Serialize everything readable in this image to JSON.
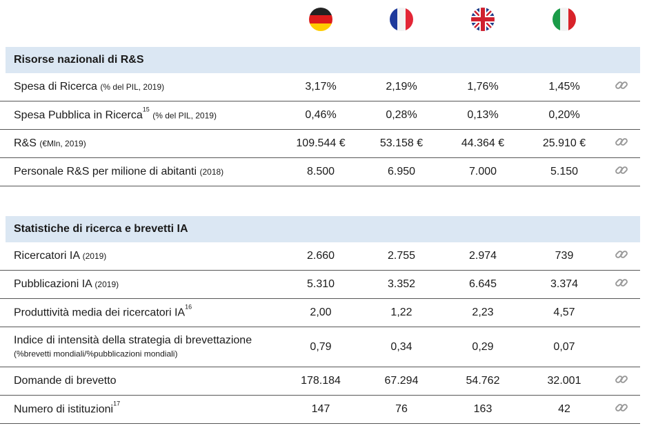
{
  "sections": [
    {
      "title": "Risorse nazionali di R&S",
      "rows": [
        {
          "label": "Spesa di Ricerca",
          "note": "(% del PIL, 2019)",
          "values": [
            "3,17%",
            "2,19%",
            "1,76%",
            "1,45%"
          ],
          "link": true
        },
        {
          "label": "Spesa Pubblica in Ricerca",
          "sup": "15",
          "note": "(% del PIL, 2019)",
          "values": [
            "0,46%",
            "0,28%",
            "0,13%",
            "0,20%"
          ],
          "link": false
        },
        {
          "label": "R&S",
          "note": "(€Mln, 2019)",
          "values": [
            "109.544 €",
            "53.158 €",
            "44.364 €",
            "25.910 €"
          ],
          "link": true
        },
        {
          "label": "Personale R&S per milione di abitanti",
          "note": "(2018)",
          "values": [
            "8.500",
            "6.950",
            "7.000",
            "5.150"
          ],
          "link": true
        }
      ]
    },
    {
      "title": "Statistiche di ricerca e brevetti IA",
      "rows": [
        {
          "label": "Ricercatori IA",
          "note": "(2019)",
          "values": [
            "2.660",
            "2.755",
            "2.974",
            "739"
          ],
          "link": true
        },
        {
          "label": "Pubblicazioni IA",
          "note": "(2019)",
          "values": [
            "5.310",
            "3.352",
            "6.645",
            "3.374"
          ],
          "link": true
        },
        {
          "label": "Produttività media dei ricercatori IA",
          "sup": "16",
          "values": [
            "2,00",
            "1,22",
            "2,23",
            "4,57"
          ],
          "link": false
        },
        {
          "label": "Indice di intensità della strategia di brevettazione",
          "note": "(%brevetti mondiali/%pubblicazioni mondiali)",
          "values": [
            "0,79",
            "0,34",
            "0,29",
            "0,07"
          ],
          "link": false
        },
        {
          "label": "Domande di brevetto",
          "values": [
            "178.184",
            "67.294",
            "54.762",
            "32.001"
          ],
          "link": true
        },
        {
          "label": "Numero di  istituzioni",
          "sup": "17",
          "values": [
            "147",
            "76",
            "163",
            "42"
          ],
          "link": true
        }
      ]
    }
  ]
}
